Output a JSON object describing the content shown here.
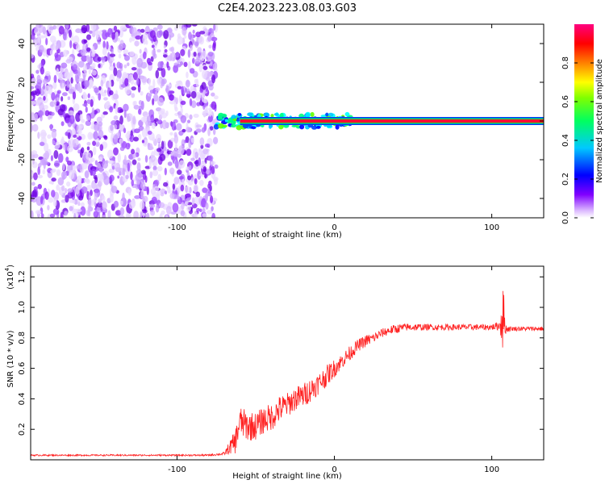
{
  "figure": {
    "title": "C2E4.2023.223.08.03.G03"
  },
  "chart_data": [
    {
      "type": "heatmap",
      "title": "C2E4.2023.223.08.03.G03",
      "xlabel": "Height of straight line (km)",
      "ylabel": "Frequency (Hz)",
      "xlim": [
        -193,
        133
      ],
      "ylim": [
        -50,
        50
      ],
      "x_ticks": [
        -100,
        0,
        100
      ],
      "x_tick_labels": [
        "-100",
        "0",
        "100"
      ],
      "y_ticks": [
        -40,
        -20,
        0,
        20,
        40
      ],
      "y_tick_labels": [
        "-40",
        "-20",
        "0",
        "20",
        "40"
      ],
      "noise_region_x": [
        -193,
        -75
      ],
      "signal_transition_x": [
        -75,
        10
      ],
      "signal_frequency_hz": 0,
      "colorbar": {
        "label": "Normalized spectral amplitude",
        "range": [
          0,
          1
        ],
        "ticks": [
          0.0,
          0.2,
          0.4,
          0.6,
          0.8
        ],
        "tick_labels": [
          "0.0",
          "0.2",
          "0.4",
          "0.6",
          "0.8"
        ],
        "colormap": [
          "#ffffff",
          "#8000ff",
          "#0000ff",
          "#00ffff",
          "#00ff00",
          "#ffff00",
          "#ff8000",
          "#ff0000",
          "#ff00a0"
        ]
      },
      "grid": false
    },
    {
      "type": "line",
      "xlabel": "Height of straight line (km)",
      "ylabel": "SNR (10 * v/v)",
      "y_multiplier_label": "(x10",
      "y_multiplier_exp": "4",
      "xlim": [
        -193,
        133
      ],
      "ylim": [
        0,
        1.27
      ],
      "x_ticks": [
        -100,
        0,
        100
      ],
      "x_tick_labels": [
        "-100",
        "0",
        "100"
      ],
      "y_ticks": [
        0.2,
        0.4,
        0.6,
        0.8,
        1.0,
        1.2
      ],
      "y_tick_labels": [
        "0.2",
        "0.4",
        "0.6",
        "0.8",
        "1.0",
        "1.2"
      ],
      "series": [
        {
          "color": "#ff2020",
          "x": [
            -193,
            -150,
            -100,
            -80,
            -70,
            -63,
            -60,
            -55,
            -50,
            -45,
            -40,
            -35,
            -30,
            -25,
            -20,
            -15,
            -10,
            -5,
            0,
            5,
            10,
            15,
            20,
            25,
            30,
            35,
            40,
            45,
            50,
            60,
            70,
            80,
            90,
            100,
            105,
            107,
            109,
            112,
            120,
            133
          ],
          "y": [
            0.03,
            0.03,
            0.03,
            0.03,
            0.04,
            0.12,
            0.25,
            0.22,
            0.22,
            0.26,
            0.28,
            0.33,
            0.36,
            0.4,
            0.42,
            0.46,
            0.5,
            0.55,
            0.6,
            0.65,
            0.7,
            0.75,
            0.78,
            0.8,
            0.83,
            0.85,
            0.86,
            0.87,
            0.87,
            0.87,
            0.87,
            0.87,
            0.87,
            0.87,
            0.88,
            0.95,
            0.86,
            0.86,
            0.86,
            0.86
          ],
          "noise": [
            0.005,
            0.005,
            0.005,
            0.006,
            0.01,
            0.08,
            0.1,
            0.1,
            0.09,
            0.09,
            0.09,
            0.09,
            0.08,
            0.08,
            0.08,
            0.08,
            0.07,
            0.07,
            0.06,
            0.05,
            0.05,
            0.04,
            0.04,
            0.035,
            0.03,
            0.03,
            0.03,
            0.025,
            0.025,
            0.02,
            0.02,
            0.02,
            0.02,
            0.02,
            0.03,
            0.25,
            0.03,
            0.015,
            0.015,
            0.015
          ]
        }
      ],
      "grid": false
    }
  ]
}
